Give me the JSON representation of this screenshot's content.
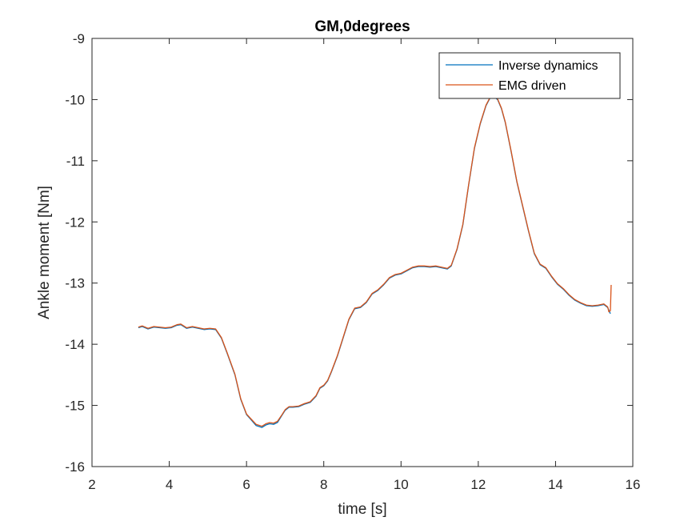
{
  "chart_data": {
    "type": "line",
    "title": "GM,0degrees",
    "xlabel": "time  [s]",
    "ylabel": "Ankle moment [Nm]",
    "xlim": [
      2,
      16
    ],
    "ylim": [
      -16,
      -9
    ],
    "xticks": [
      2,
      4,
      6,
      8,
      10,
      12,
      14,
      16
    ],
    "xtick_labels": [
      "2",
      "4",
      "6",
      "8",
      "10",
      "12",
      "14",
      "16"
    ],
    "yticks": [
      -16,
      -15,
      -14,
      -13,
      -12,
      -11,
      -10,
      -9
    ],
    "ytick_labels": [
      "-16",
      "-15",
      "-14",
      "-13",
      "-12",
      "-11",
      "-10",
      "-9"
    ],
    "grid": false,
    "legend_position": "top-right",
    "series": [
      {
        "name": "Inverse dynamics",
        "color": "#0072BD",
        "x": [
          3.2,
          3.3,
          3.45,
          3.6,
          3.75,
          3.9,
          4.05,
          4.2,
          4.3,
          4.45,
          4.6,
          4.75,
          4.9,
          5.05,
          5.2,
          5.35,
          5.5,
          5.7,
          5.85,
          6.0,
          6.1,
          6.25,
          6.4,
          6.5,
          6.6,
          6.7,
          6.8,
          6.9,
          7.0,
          7.1,
          7.2,
          7.35,
          7.5,
          7.65,
          7.8,
          7.9,
          8.0,
          8.1,
          8.2,
          8.35,
          8.5,
          8.65,
          8.8,
          8.95,
          9.1,
          9.25,
          9.4,
          9.55,
          9.7,
          9.85,
          10.0,
          10.15,
          10.3,
          10.45,
          10.6,
          10.75,
          10.9,
          11.05,
          11.2,
          11.3,
          11.45,
          11.6,
          11.75,
          11.9,
          12.05,
          12.2,
          12.3,
          12.4,
          12.5,
          12.6,
          12.7,
          12.85,
          13.0,
          13.15,
          13.3,
          13.45,
          13.6,
          13.75,
          13.9,
          14.05,
          14.2,
          14.35,
          14.5,
          14.65,
          14.8,
          14.95,
          15.1,
          15.25,
          15.35,
          15.42
        ],
        "values": [
          -13.73,
          -13.71,
          -13.75,
          -13.72,
          -13.73,
          -13.74,
          -13.73,
          -13.69,
          -13.68,
          -13.74,
          -13.72,
          -13.74,
          -13.76,
          -13.75,
          -13.76,
          -13.9,
          -14.15,
          -14.5,
          -14.9,
          -15.15,
          -15.22,
          -15.33,
          -15.36,
          -15.32,
          -15.3,
          -15.31,
          -15.28,
          -15.18,
          -15.08,
          -15.03,
          -15.03,
          -15.02,
          -14.98,
          -14.95,
          -14.85,
          -14.72,
          -14.68,
          -14.6,
          -14.45,
          -14.2,
          -13.9,
          -13.6,
          -13.42,
          -13.4,
          -13.32,
          -13.18,
          -13.12,
          -13.03,
          -12.92,
          -12.87,
          -12.85,
          -12.8,
          -12.75,
          -12.73,
          -12.73,
          -12.74,
          -12.73,
          -12.75,
          -12.77,
          -12.72,
          -12.45,
          -12.05,
          -11.4,
          -10.8,
          -10.4,
          -10.1,
          -9.98,
          -9.95,
          -10.0,
          -10.15,
          -10.38,
          -10.85,
          -11.35,
          -11.75,
          -12.15,
          -12.52,
          -12.7,
          -12.76,
          -12.9,
          -13.02,
          -13.1,
          -13.2,
          -13.28,
          -13.33,
          -13.37,
          -13.38,
          -13.37,
          -13.35,
          -13.4,
          -13.5
        ]
      },
      {
        "name": "EMG driven",
        "color": "#D95319",
        "x": [
          3.2,
          3.3,
          3.45,
          3.6,
          3.75,
          3.9,
          4.05,
          4.2,
          4.3,
          4.45,
          4.6,
          4.75,
          4.9,
          5.05,
          5.2,
          5.35,
          5.5,
          5.7,
          5.85,
          6.0,
          6.1,
          6.25,
          6.4,
          6.5,
          6.6,
          6.7,
          6.8,
          6.9,
          7.0,
          7.1,
          7.2,
          7.35,
          7.5,
          7.65,
          7.8,
          7.9,
          8.0,
          8.1,
          8.2,
          8.35,
          8.5,
          8.65,
          8.8,
          8.95,
          9.1,
          9.25,
          9.4,
          9.55,
          9.7,
          9.85,
          10.0,
          10.15,
          10.3,
          10.45,
          10.6,
          10.75,
          10.9,
          11.05,
          11.2,
          11.3,
          11.45,
          11.6,
          11.75,
          11.9,
          12.05,
          12.2,
          12.3,
          12.4,
          12.5,
          12.6,
          12.7,
          12.85,
          13.0,
          13.15,
          13.3,
          13.45,
          13.6,
          13.75,
          13.9,
          14.05,
          14.2,
          14.35,
          14.5,
          14.65,
          14.8,
          14.95,
          15.1,
          15.25,
          15.35,
          15.38,
          15.42,
          15.44
        ],
        "values": [
          -13.72,
          -13.7,
          -13.74,
          -13.71,
          -13.72,
          -13.73,
          -13.72,
          -13.68,
          -13.67,
          -13.73,
          -13.71,
          -13.73,
          -13.75,
          -13.74,
          -13.75,
          -13.89,
          -14.14,
          -14.49,
          -14.89,
          -15.14,
          -15.21,
          -15.31,
          -15.34,
          -15.3,
          -15.28,
          -15.29,
          -15.26,
          -15.17,
          -15.07,
          -15.02,
          -15.02,
          -15.01,
          -14.97,
          -14.94,
          -14.84,
          -14.71,
          -14.67,
          -14.59,
          -14.44,
          -14.19,
          -13.89,
          -13.59,
          -13.41,
          -13.39,
          -13.31,
          -13.17,
          -13.11,
          -13.02,
          -12.91,
          -12.86,
          -12.84,
          -12.79,
          -12.74,
          -12.72,
          -12.72,
          -12.73,
          -12.72,
          -12.74,
          -12.76,
          -12.71,
          -12.44,
          -12.04,
          -11.39,
          -10.79,
          -10.39,
          -10.09,
          -9.97,
          -9.94,
          -9.99,
          -10.14,
          -10.37,
          -10.84,
          -11.34,
          -11.74,
          -12.14,
          -12.51,
          -12.69,
          -12.75,
          -12.89,
          -13.01,
          -13.09,
          -13.19,
          -13.27,
          -13.32,
          -13.36,
          -13.37,
          -13.36,
          -13.34,
          -13.39,
          -13.47,
          -13.45,
          -13.03
        ]
      }
    ]
  }
}
